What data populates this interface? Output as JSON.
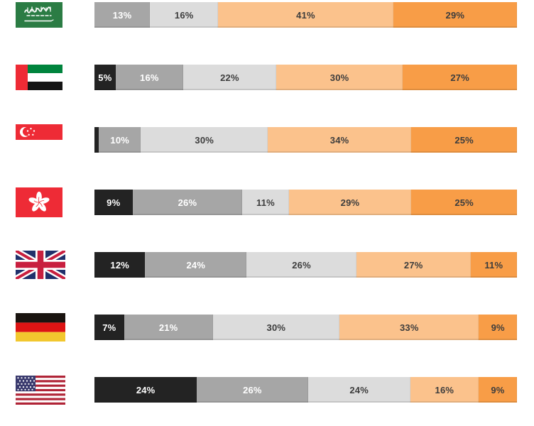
{
  "colors": {
    "black": "#232323",
    "gray": "#a6a6a6",
    "light_gray": "#dcdcdc",
    "light_orange": "#fbc28c",
    "orange": "#f89d47",
    "label_on_dark": "#ffffff",
    "label_on_light": "#3d3d3d"
  },
  "chart_data": {
    "type": "bar",
    "orientation": "horizontal-stacked",
    "unit": "percent",
    "title": "",
    "xlabel": "",
    "ylabel": "",
    "legend": false,
    "grid": false,
    "xlim": [
      0,
      100
    ],
    "categories": [
      "Saudi Arabia",
      "United Arab Emirates",
      "Singapore",
      "Hong Kong",
      "United Kingdom",
      "Germany",
      "United States"
    ],
    "category_labels_rendered_as": "country flags",
    "series": [
      {
        "name": "Black",
        "color": "#232323",
        "values": [
          0,
          5,
          1,
          9,
          12,
          7,
          24
        ]
      },
      {
        "name": "Gray",
        "color": "#a6a6a6",
        "values": [
          13,
          16,
          10,
          26,
          24,
          21,
          26
        ]
      },
      {
        "name": "Light gray",
        "color": "#dcdcdc",
        "values": [
          16,
          22,
          30,
          11,
          26,
          30,
          24
        ]
      },
      {
        "name": "Light orange",
        "color": "#fbc28c",
        "values": [
          41,
          30,
          34,
          29,
          27,
          33,
          16
        ]
      },
      {
        "name": "Orange",
        "color": "#f89d47",
        "values": [
          29,
          27,
          25,
          25,
          11,
          9,
          9
        ]
      }
    ],
    "data_labels": "shown as N% inside each segment; 1% segment unlabeled"
  },
  "rows": [
    {
      "country": "Saudi Arabia",
      "flag": "saudi-arabia",
      "segments": [
        {
          "key": "gray",
          "value": 13,
          "label": "13%"
        },
        {
          "key": "light_gray",
          "value": 16,
          "label": "16%"
        },
        {
          "key": "light_orange",
          "value": 41,
          "label": "41%"
        },
        {
          "key": "orange",
          "value": 29,
          "label": "29%"
        }
      ]
    },
    {
      "country": "United Arab Emirates",
      "flag": "united-arab-emirates",
      "segments": [
        {
          "key": "black",
          "value": 5,
          "label": "5%"
        },
        {
          "key": "gray",
          "value": 16,
          "label": "16%"
        },
        {
          "key": "light_gray",
          "value": 22,
          "label": "22%"
        },
        {
          "key": "light_orange",
          "value": 30,
          "label": "30%"
        },
        {
          "key": "orange",
          "value": 27,
          "label": "27%"
        }
      ]
    },
    {
      "country": "Singapore",
      "flag": "singapore",
      "segments": [
        {
          "key": "black",
          "value": 1,
          "label": ""
        },
        {
          "key": "gray",
          "value": 10,
          "label": "10%"
        },
        {
          "key": "light_gray",
          "value": 30,
          "label": "30%"
        },
        {
          "key": "light_orange",
          "value": 34,
          "label": "34%"
        },
        {
          "key": "orange",
          "value": 25,
          "label": "25%"
        }
      ]
    },
    {
      "country": "Hong Kong",
      "flag": "hong-kong",
      "segments": [
        {
          "key": "black",
          "value": 9,
          "label": "9%"
        },
        {
          "key": "gray",
          "value": 26,
          "label": "26%"
        },
        {
          "key": "light_gray",
          "value": 11,
          "label": "11%"
        },
        {
          "key": "light_orange",
          "value": 29,
          "label": "29%"
        },
        {
          "key": "orange",
          "value": 25,
          "label": "25%"
        }
      ]
    },
    {
      "country": "United Kingdom",
      "flag": "united-kingdom",
      "segments": [
        {
          "key": "black",
          "value": 12,
          "label": "12%"
        },
        {
          "key": "gray",
          "value": 24,
          "label": "24%"
        },
        {
          "key": "light_gray",
          "value": 26,
          "label": "26%"
        },
        {
          "key": "light_orange",
          "value": 27,
          "label": "27%"
        },
        {
          "key": "orange",
          "value": 11,
          "label": "11%"
        }
      ]
    },
    {
      "country": "Germany",
      "flag": "germany",
      "segments": [
        {
          "key": "black",
          "value": 7,
          "label": "7%"
        },
        {
          "key": "gray",
          "value": 21,
          "label": "21%"
        },
        {
          "key": "light_gray",
          "value": 30,
          "label": "30%"
        },
        {
          "key": "light_orange",
          "value": 33,
          "label": "33%"
        },
        {
          "key": "orange",
          "value": 9,
          "label": "9%"
        }
      ]
    },
    {
      "country": "United States",
      "flag": "united-states",
      "segments": [
        {
          "key": "black",
          "value": 24,
          "label": "24%"
        },
        {
          "key": "gray",
          "value": 26,
          "label": "26%"
        },
        {
          "key": "light_gray",
          "value": 24,
          "label": "24%"
        },
        {
          "key": "light_orange",
          "value": 16,
          "label": "16%"
        },
        {
          "key": "orange",
          "value": 9,
          "label": "9%"
        }
      ]
    }
  ]
}
